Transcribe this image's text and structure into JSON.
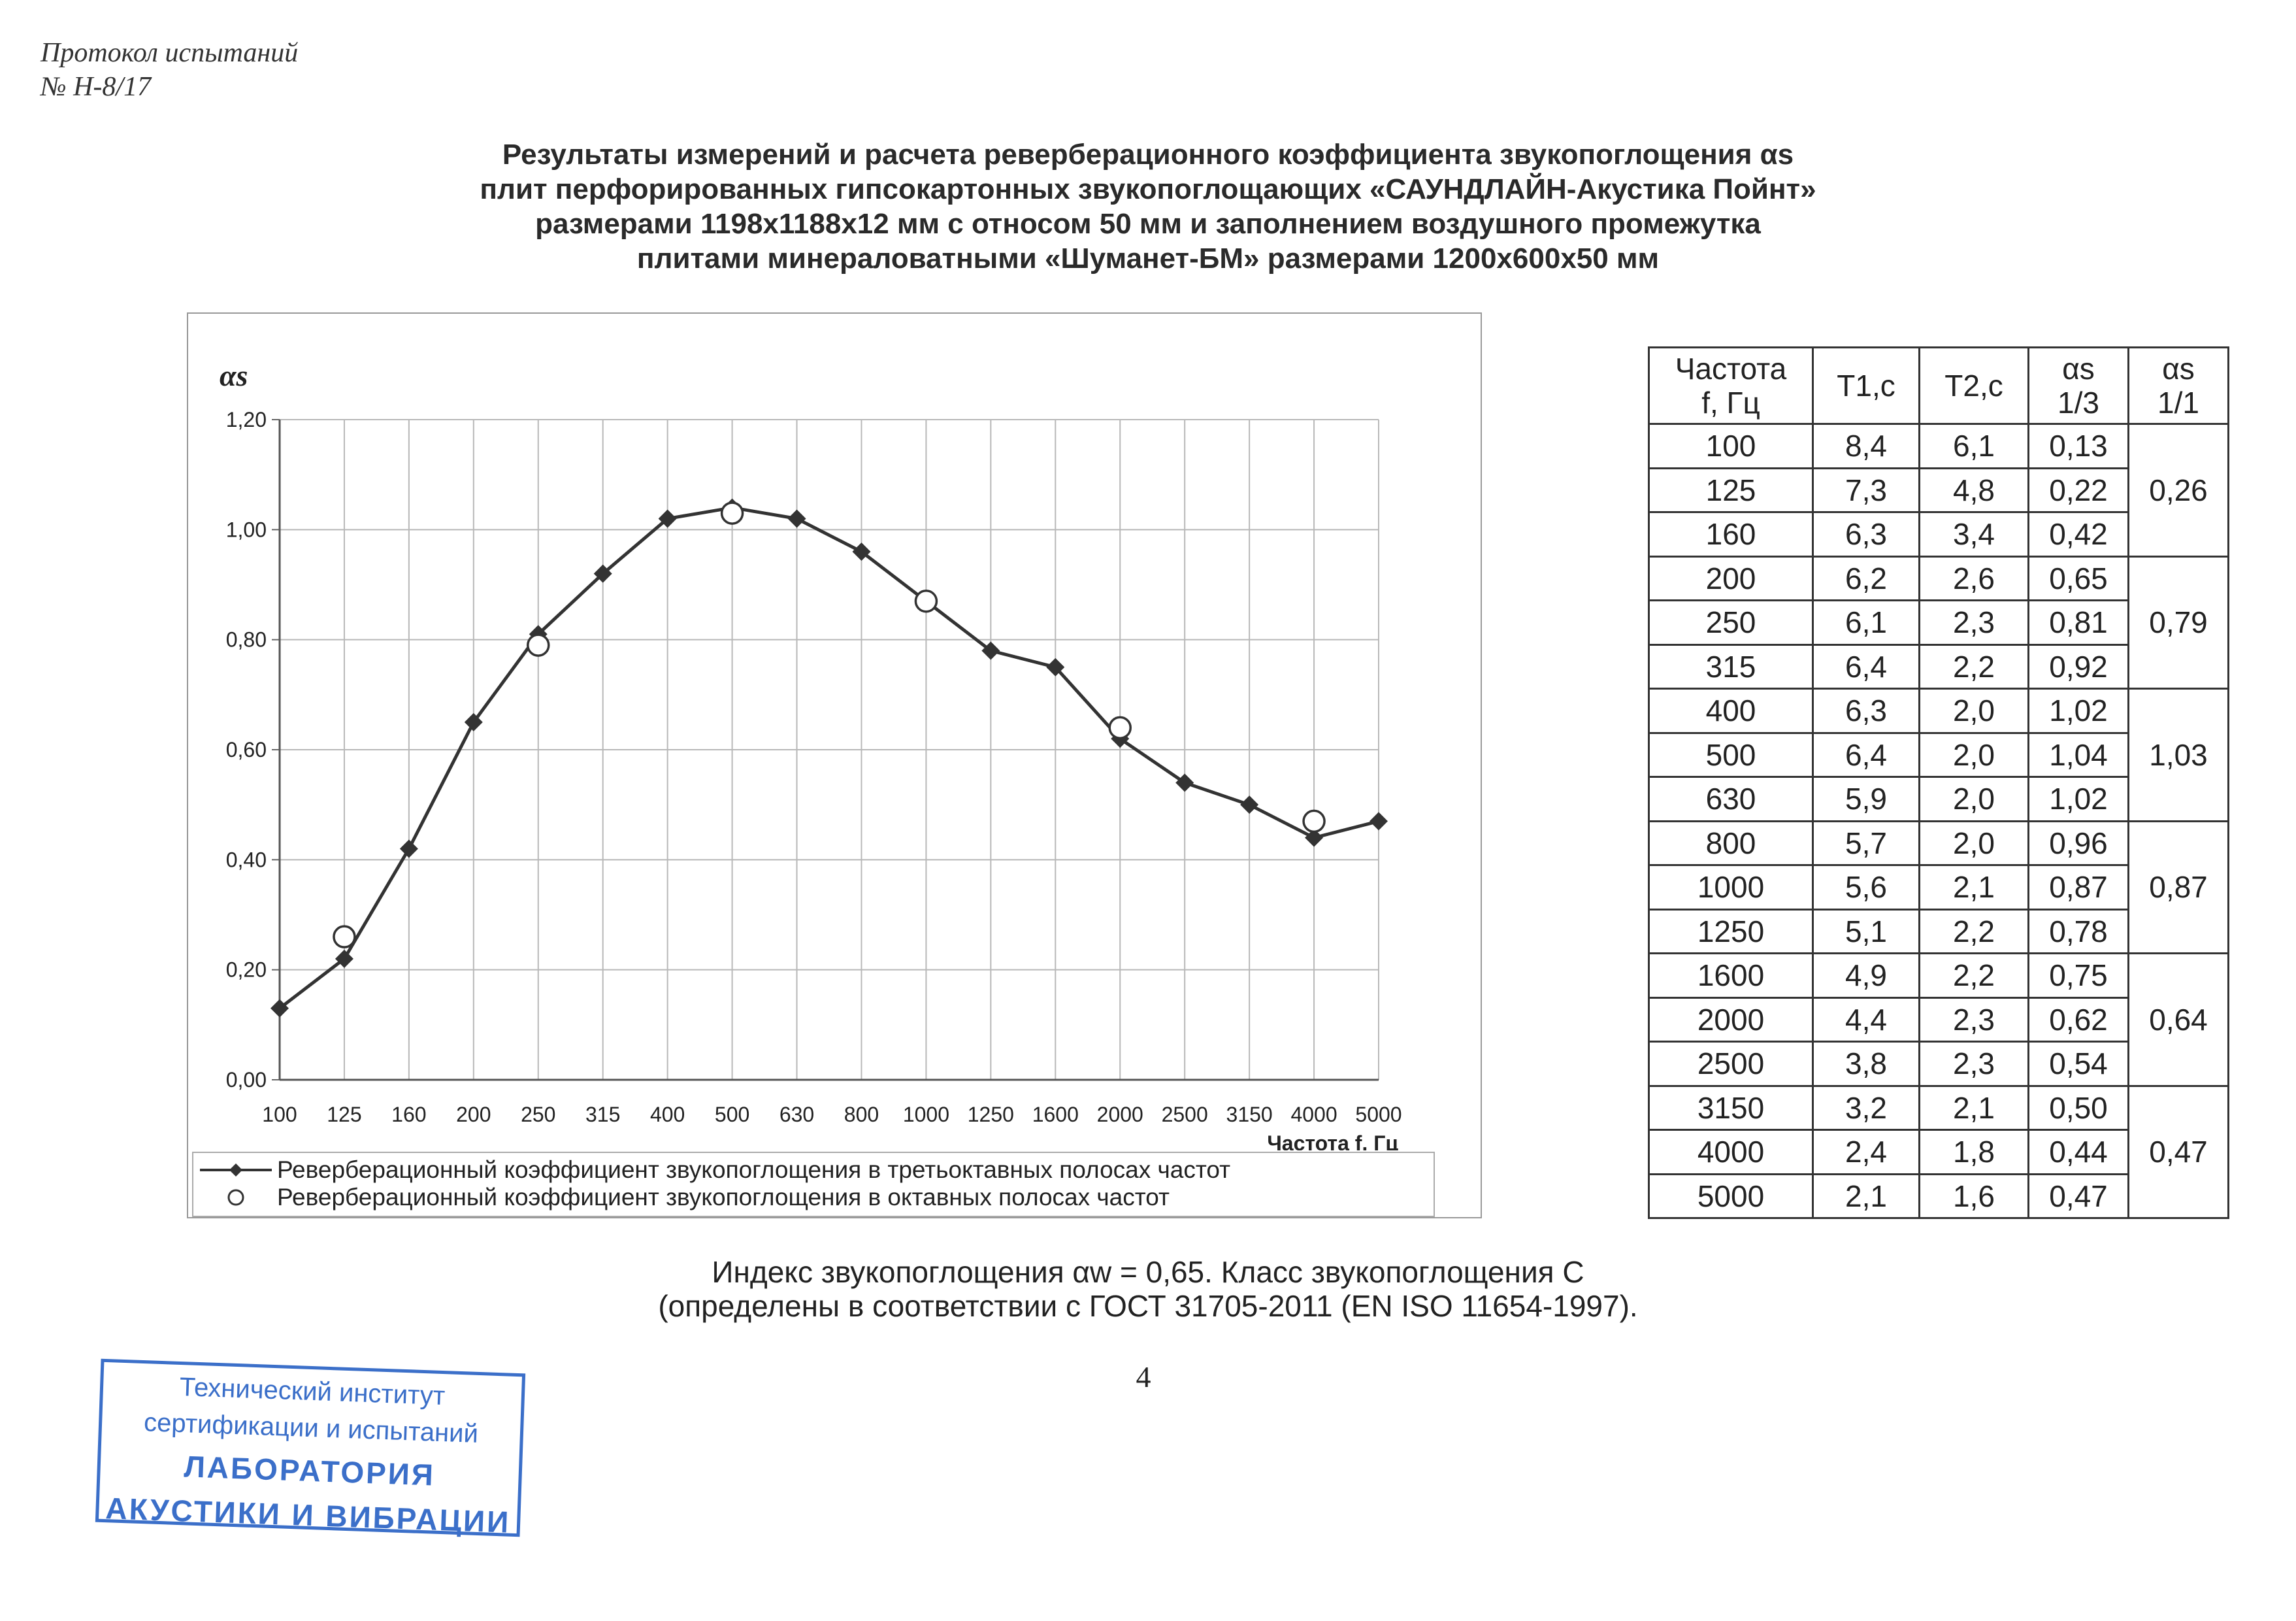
{
  "header": {
    "line1": "Протокол испытаний",
    "line2": "№ Н-8/17"
  },
  "title": [
    "Результаты измерений и расчета реверберационного коэффициента звукопоглощения  αs",
    "плит перфорированных гипсокартонных звукопоглощающих «САУНДЛАЙН-Акустика Пойнт»",
    "размерами 1198х1188х12 мм с относом 50 мм и заполнением воздушного промежутка",
    "плитами минераловатными  «Шуманет-БМ» размерами 1200х600х50 мм"
  ],
  "chart_data": {
    "type": "line",
    "ylabel": "αs",
    "xlabel": "Частота f, Гц",
    "ylim": [
      0,
      1.2
    ],
    "yticks": [
      "0,00",
      "0,20",
      "0,40",
      "0,60",
      "0,80",
      "1,00",
      "1,20"
    ],
    "grid": true,
    "legend_position": "bottom",
    "categories": [
      "100",
      "125",
      "160",
      "200",
      "250",
      "315",
      "400",
      "500",
      "630",
      "800",
      "1000",
      "1250",
      "1600",
      "2000",
      "2500",
      "3150",
      "4000",
      "5000"
    ],
    "series": [
      {
        "name": "Реверберационный коэффициент звукопоглощения в третьоктавных полосах частот",
        "marker": "diamond",
        "color": "#333333",
        "x": [
          "100",
          "125",
          "160",
          "200",
          "250",
          "315",
          "400",
          "500",
          "630",
          "800",
          "1000",
          "1250",
          "1600",
          "2000",
          "2500",
          "3150",
          "4000",
          "5000"
        ],
        "values": [
          0.13,
          0.22,
          0.42,
          0.65,
          0.81,
          0.92,
          1.02,
          1.04,
          1.02,
          0.96,
          0.87,
          0.78,
          0.75,
          0.62,
          0.54,
          0.5,
          0.44,
          0.47
        ]
      },
      {
        "name": "Реверберационный коэффициент звукопоглощения в октавных полосах частот",
        "marker": "open-circle",
        "color": "#333333",
        "x": [
          "125",
          "250",
          "500",
          "1000",
          "2000",
          "4000"
        ],
        "values": [
          0.26,
          0.79,
          1.03,
          0.87,
          0.64,
          0.47
        ]
      }
    ]
  },
  "table": {
    "headers": [
      {
        "l1": "Частота",
        "l2": "f, Гц"
      },
      {
        "l1": "T1,c",
        "l2": ""
      },
      {
        "l1": "T2,c",
        "l2": ""
      },
      {
        "l1": "αs",
        "l2": "1/3"
      },
      {
        "l1": "αs",
        "l2": "1/1"
      }
    ],
    "rows": [
      [
        "100",
        "8,4",
        "6,1",
        "0,13"
      ],
      [
        "125",
        "7,3",
        "4,8",
        "0,22"
      ],
      [
        "160",
        "6,3",
        "3,4",
        "0,42"
      ],
      [
        "200",
        "6,2",
        "2,6",
        "0,65"
      ],
      [
        "250",
        "6,1",
        "2,3",
        "0,81"
      ],
      [
        "315",
        "6,4",
        "2,2",
        "0,92"
      ],
      [
        "400",
        "6,3",
        "2,0",
        "1,02"
      ],
      [
        "500",
        "6,4",
        "2,0",
        "1,04"
      ],
      [
        "630",
        "5,9",
        "2,0",
        "1,02"
      ],
      [
        "800",
        "5,7",
        "2,0",
        "0,96"
      ],
      [
        "1000",
        "5,6",
        "2,1",
        "0,87"
      ],
      [
        "1250",
        "5,1",
        "2,2",
        "0,78"
      ],
      [
        "1600",
        "4,9",
        "2,2",
        "0,75"
      ],
      [
        "2000",
        "4,4",
        "2,3",
        "0,62"
      ],
      [
        "2500",
        "3,8",
        "2,3",
        "0,54"
      ],
      [
        "3150",
        "3,2",
        "2,1",
        "0,50"
      ],
      [
        "4000",
        "2,4",
        "1,8",
        "0,44"
      ],
      [
        "5000",
        "2,1",
        "1,6",
        "0,47"
      ]
    ],
    "octave": [
      "0,26",
      "0,79",
      "1,03",
      "0,87",
      "0,64",
      "0,47"
    ]
  },
  "footer": {
    "line1": "Индекс звукопоглощения αw = 0,65. Класс звукопоглощения  C",
    "line2": "(определены в соответствии с ГОСТ 31705-2011 (EN ISO 11654-1997)."
  },
  "page_number": "4",
  "stamp": {
    "l1": "Технический институт",
    "l2": "сертификации и испытаний",
    "l3": "ЛАБОРАТОРИЯ",
    "l4": "АКУСТИКИ И ВИБРАЦИИ"
  }
}
